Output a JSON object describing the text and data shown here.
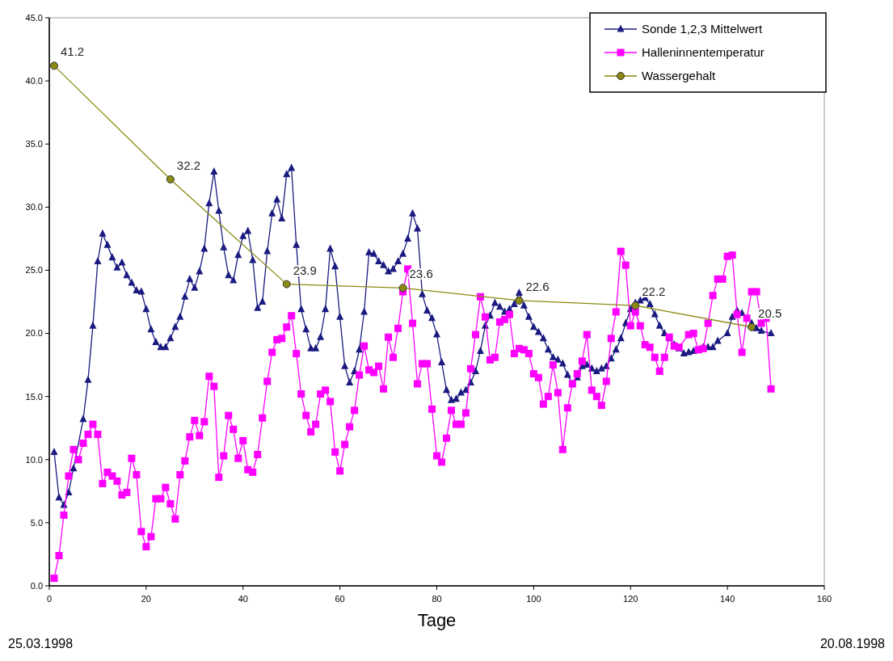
{
  "chart_data": {
    "type": "line",
    "xlabel": "Tage",
    "xlim": [
      0,
      160
    ],
    "xticks": [
      0,
      20,
      40,
      60,
      80,
      100,
      120,
      140,
      160
    ],
    "ylim": [
      0,
      45
    ],
    "yticks": [
      {
        "value": 0,
        "label": "0.0"
      },
      {
        "value": 5,
        "label": "5.0"
      },
      {
        "value": 10,
        "label": "10.0"
      },
      {
        "value": 15,
        "label": "15.0"
      },
      {
        "value": 20,
        "label": "20.0"
      },
      {
        "value": 25,
        "label": "25.0"
      },
      {
        "value": 30,
        "label": "30.0"
      },
      {
        "value": 35,
        "label": "35.0"
      },
      {
        "value": 40,
        "label": "40.0"
      },
      {
        "value": 45,
        "label": "45.0"
      }
    ],
    "grid": false,
    "legend": "top right",
    "series": [
      {
        "name": "Sonde 1,2,3 Mittelwert",
        "color": "#1a1a80",
        "marker": "triangle",
        "x": [
          1,
          2,
          3,
          4,
          5,
          7,
          8,
          9,
          10,
          11,
          12,
          13,
          14,
          15,
          16,
          17,
          18,
          19,
          20,
          21,
          22,
          23,
          24,
          25,
          26,
          27,
          28,
          29,
          30,
          31,
          32,
          33,
          34,
          35,
          36,
          37,
          38,
          39,
          40,
          41,
          42,
          43,
          44,
          45,
          46,
          47,
          48,
          49,
          50,
          51,
          52,
          53,
          54,
          55,
          56,
          57,
          58,
          59,
          60,
          61,
          62,
          63,
          64,
          65,
          66,
          67,
          68,
          69,
          70,
          71,
          72,
          73,
          74,
          75,
          76,
          77,
          78,
          79,
          80,
          81,
          82,
          83,
          84,
          85,
          86,
          87,
          88,
          89,
          90,
          91,
          92,
          93,
          94,
          95,
          96,
          97,
          98,
          99,
          100,
          101,
          102,
          103,
          104,
          105,
          106,
          107,
          108,
          109,
          110,
          111,
          112,
          113,
          114,
          115,
          116,
          117,
          118,
          119,
          120,
          121,
          122,
          123,
          124,
          125,
          126,
          127,
          128,
          129,
          130,
          131,
          132,
          133,
          135,
          136,
          137,
          138,
          140,
          141,
          142,
          143,
          145,
          146,
          147,
          149
        ],
        "values": [
          10.6,
          7.0,
          6.4,
          7.4,
          9.3,
          13.2,
          16.3,
          20.6,
          25.7,
          27.9,
          27.0,
          26.0,
          25.2,
          25.6,
          24.6,
          24.0,
          23.4,
          23.3,
          21.9,
          20.3,
          19.3,
          18.9,
          18.9,
          19.6,
          20.5,
          21.3,
          22.9,
          24.3,
          23.6,
          24.9,
          26.7,
          30.3,
          32.8,
          29.7,
          26.8,
          24.6,
          24.2,
          26.2,
          27.7,
          28.1,
          25.8,
          22.0,
          22.5,
          26.5,
          29.5,
          30.6,
          29.1,
          32.6,
          33.1,
          27.0,
          21.9,
          20.3,
          18.8,
          18.8,
          19.7,
          21.9,
          26.7,
          25.3,
          21.3,
          17.4,
          16.1,
          17.0,
          18.7,
          21.7,
          26.4,
          26.3,
          25.7,
          25.4,
          24.9,
          25.1,
          25.7,
          26.3,
          27.5,
          29.5,
          28.3,
          23.1,
          21.8,
          21.2,
          19.9,
          17.7,
          15.5,
          14.7,
          14.8,
          15.3,
          15.5,
          16.1,
          17.0,
          18.6,
          20.6,
          21.4,
          22.4,
          22.1,
          21.7,
          21.9,
          22.3,
          23.2,
          22.2,
          21.3,
          20.5,
          20.1,
          19.6,
          18.7,
          18.1,
          17.9,
          17.6,
          16.7,
          16.0,
          16.5,
          17.4,
          17.5,
          17.2,
          17.0,
          17.2,
          17.4,
          18.0,
          18.7,
          19.6,
          20.8,
          21.9,
          22.4,
          22.6,
          22.8,
          22.3,
          21.5,
          20.6,
          20.0,
          19.6,
          19.1,
          18.8,
          18.4,
          18.5,
          18.6,
          18.9,
          18.9,
          18.9,
          19.4,
          20.0,
          21.3,
          21.8,
          21.6,
          20.8,
          20.4,
          20.2,
          20.0
        ]
      },
      {
        "name": "Halleninnentemperatur",
        "color": "#ff00ff",
        "marker": "square",
        "x": [
          1,
          2,
          3,
          4,
          5,
          6,
          7,
          8,
          9,
          10,
          11,
          12,
          13,
          14,
          15,
          16,
          17,
          18,
          19,
          20,
          21,
          22,
          23,
          24,
          25,
          26,
          27,
          28,
          29,
          30,
          31,
          32,
          33,
          34,
          35,
          36,
          37,
          38,
          39,
          40,
          41,
          42,
          43,
          44,
          45,
          46,
          47,
          48,
          49,
          50,
          51,
          52,
          53,
          54,
          55,
          56,
          57,
          58,
          59,
          60,
          61,
          62,
          63,
          64,
          65,
          66,
          67,
          68,
          69,
          70,
          71,
          72,
          73,
          74,
          75,
          76,
          77,
          78,
          79,
          80,
          81,
          82,
          83,
          84,
          85,
          86,
          87,
          88,
          89,
          90,
          91,
          92,
          93,
          94,
          95,
          96,
          97,
          98,
          99,
          100,
          101,
          102,
          103,
          104,
          105,
          106,
          107,
          108,
          109,
          110,
          111,
          112,
          113,
          114,
          115,
          116,
          117,
          118,
          119,
          120,
          121,
          122,
          123,
          124,
          125,
          126,
          127,
          128,
          129,
          130,
          132,
          133,
          134,
          135,
          136,
          137,
          138,
          139,
          140,
          141,
          142,
          143,
          144,
          145,
          146,
          147,
          148,
          149
        ],
        "values": [
          0.6,
          2.4,
          5.6,
          8.7,
          10.8,
          10.0,
          11.3,
          12.0,
          12.8,
          12.0,
          8.1,
          9.0,
          8.7,
          8.3,
          7.2,
          7.4,
          10.1,
          8.8,
          4.3,
          3.1,
          3.9,
          6.9,
          6.9,
          7.8,
          6.5,
          5.3,
          8.8,
          9.9,
          11.8,
          13.1,
          11.9,
          13.0,
          16.6,
          15.8,
          8.6,
          10.3,
          13.5,
          12.4,
          10.1,
          11.5,
          9.2,
          9.0,
          10.4,
          13.3,
          16.2,
          18.5,
          19.5,
          19.6,
          20.5,
          21.4,
          18.4,
          15.2,
          13.5,
          12.2,
          12.8,
          15.2,
          15.5,
          14.6,
          10.6,
          9.1,
          11.2,
          12.6,
          13.9,
          16.7,
          19.0,
          17.1,
          16.9,
          17.4,
          15.6,
          19.7,
          18.1,
          20.4,
          23.3,
          25.1,
          20.8,
          16.0,
          17.6,
          17.6,
          14.0,
          10.3,
          9.8,
          11.7,
          13.9,
          12.8,
          12.8,
          13.7,
          17.2,
          19.9,
          22.9,
          21.3,
          17.9,
          18.1,
          20.9,
          21.1,
          21.5,
          18.4,
          18.8,
          18.7,
          18.4,
          16.8,
          16.5,
          14.4,
          15.0,
          17.5,
          15.3,
          10.8,
          14.1,
          16.0,
          16.8,
          17.8,
          19.9,
          15.5,
          15.0,
          14.3,
          16.2,
          19.6,
          21.7,
          26.5,
          25.4,
          20.6,
          21.7,
          20.6,
          19.1,
          18.9,
          18.1,
          17.0,
          18.1,
          19.7,
          19.0,
          18.9,
          19.9,
          20.0,
          18.7,
          18.8,
          20.8,
          23.0,
          24.3,
          24.3,
          26.1,
          26.2,
          21.5,
          18.5,
          21.2,
          23.3,
          23.3,
          20.8,
          21.2,
          15.6
        ]
      },
      {
        "name": "Wassergehalt",
        "color": "#8a8a10",
        "marker": "circle",
        "x": [
          1,
          25,
          49,
          73,
          97,
          121,
          145
        ],
        "values": [
          41.2,
          32.2,
          23.9,
          23.6,
          22.6,
          22.2,
          20.5
        ],
        "value_labels": [
          "41.2",
          "32.2",
          "23.9",
          "23.6",
          "22.6",
          "22.2",
          "20.5"
        ]
      }
    ],
    "annotations": [
      "25.03.1998",
      "20.08.1998"
    ]
  }
}
